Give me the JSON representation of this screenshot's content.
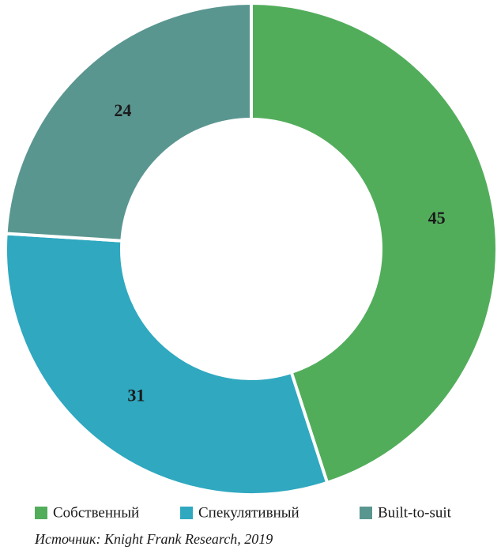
{
  "chart_data": {
    "type": "donut",
    "categories": [
      "Собственный",
      "Спекулятивный",
      "Built-to-suit"
    ],
    "values": [
      45,
      31,
      24
    ],
    "colors": [
      "#52ad5b",
      "#2fa8c0",
      "#5a9690"
    ],
    "legend": "bottom",
    "source": "Источник: Knight Frank Research, 2019"
  }
}
